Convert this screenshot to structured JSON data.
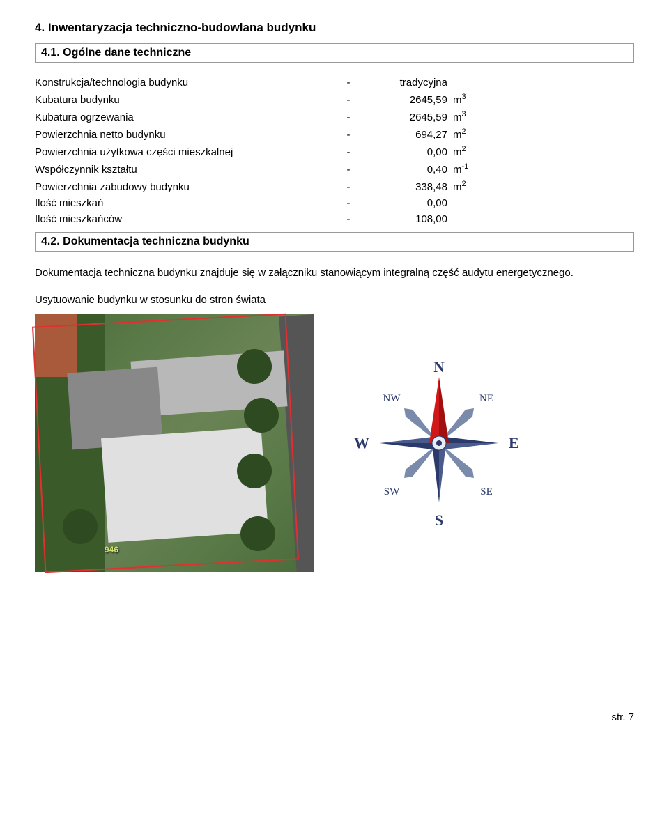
{
  "section": {
    "main_heading": "4. Inwentaryzacja techniczno-budowlana budynku",
    "sub_1": "4.1. Ogólne dane techniczne",
    "sub_2": "4.2. Dokumentacja techniczna budynku"
  },
  "params": [
    {
      "label": "Konstrukcja/technologia budynku",
      "dash": "-",
      "value": "tradycyjna",
      "unit": ""
    },
    {
      "label": "Kubatura budynku",
      "dash": "-",
      "value": "2645,59",
      "unit": "m",
      "exp": "3"
    },
    {
      "label": "Kubatura ogrzewania",
      "dash": "-",
      "value": "2645,59",
      "unit": "m",
      "exp": "3"
    },
    {
      "label": "Powierzchnia netto budynku",
      "dash": "-",
      "value": "694,27",
      "unit": "m",
      "exp": "2"
    },
    {
      "label": "Powierzchnia użytkowa części mieszkalnej",
      "dash": "-",
      "value": "0,00",
      "unit": "m",
      "exp": "2"
    },
    {
      "label": "Współczynnik kształtu",
      "dash": "-",
      "value": "0,40",
      "unit": "m",
      "exp": "-1"
    },
    {
      "label": "Powierzchnia zabudowy budynku",
      "dash": "-",
      "value": "338,48",
      "unit": "m",
      "exp": "2"
    },
    {
      "label": "Ilość mieszkań",
      "dash": "-",
      "value": "0,00",
      "unit": ""
    },
    {
      "label": "Ilość mieszkańców",
      "dash": "-",
      "value": "108,00",
      "unit": ""
    }
  ],
  "description": "Dokumentacja techniczna budynku znajduje się w załączniku stanowiącym integralną część audytu energetycznego.",
  "caption": "Usytuowanie budynku w stosunku do stron świata",
  "aerial": {
    "lot_number": "946",
    "outline_color": "#e03030"
  },
  "compass": {
    "labels": {
      "n": "N",
      "ne": "NE",
      "e": "E",
      "se": "SE",
      "s": "S",
      "sw": "SW",
      "w": "W",
      "nw": "NW"
    },
    "colors": {
      "north_arrow": "#d01818",
      "cardinal_arrow": "#2b3a6b",
      "inter_arrow": "#7a8aaa",
      "text": "#2b3a6b",
      "shadow": "#b8c4dc"
    }
  },
  "footer": "str. 7"
}
